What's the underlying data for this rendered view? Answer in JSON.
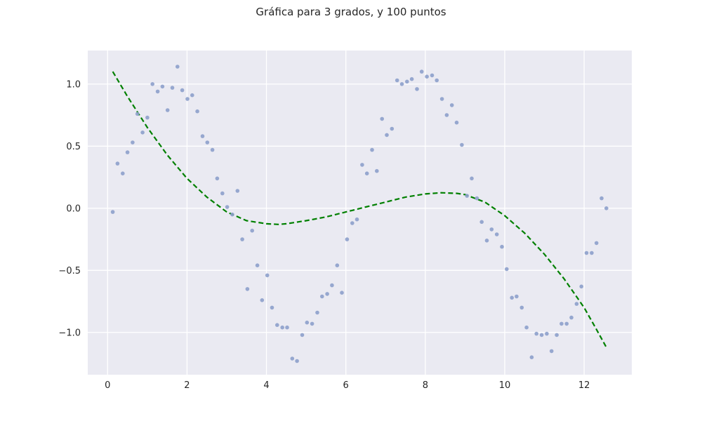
{
  "chart_data": {
    "type": "scatter",
    "title": "Gráfica para 3 grados, y 100 puntos",
    "xlabel": "",
    "ylabel": "",
    "xlim": [
      -0.5,
      13.2
    ],
    "ylim": [
      -1.34,
      1.27
    ],
    "grid": true,
    "legend": "none",
    "xticks": [
      0,
      2,
      4,
      6,
      8,
      10,
      12
    ],
    "xtick_labels": [
      "0",
      "2",
      "4",
      "6",
      "8",
      "10",
      "12"
    ],
    "yticks": [
      -1.0,
      -0.5,
      0.0,
      0.5,
      1.0
    ],
    "ytick_labels": [
      "−1.0",
      "−0.5",
      "0.0",
      "0.5",
      "1.0"
    ],
    "series": [
      {
        "kind": "scatter",
        "color": "#8da0cb",
        "x": [
          0.13,
          0.25,
          0.38,
          0.5,
          0.63,
          0.75,
          0.88,
          1.0,
          1.13,
          1.26,
          1.38,
          1.51,
          1.63,
          1.76,
          1.88,
          2.01,
          2.13,
          2.26,
          2.39,
          2.51,
          2.64,
          2.76,
          2.89,
          3.01,
          3.14,
          3.27,
          3.39,
          3.52,
          3.64,
          3.77,
          3.89,
          4.02,
          4.14,
          4.27,
          4.4,
          4.52,
          4.65,
          4.77,
          4.9,
          5.02,
          5.15,
          5.28,
          5.4,
          5.53,
          5.65,
          5.78,
          5.9,
          6.03,
          6.16,
          6.28,
          6.41,
          6.53,
          6.66,
          6.78,
          6.91,
          7.03,
          7.16,
          7.29,
          7.41,
          7.54,
          7.66,
          7.79,
          7.91,
          8.04,
          8.17,
          8.29,
          8.42,
          8.54,
          8.67,
          8.79,
          8.92,
          9.05,
          9.17,
          9.3,
          9.42,
          9.55,
          9.67,
          9.8,
          9.93,
          10.05,
          10.18,
          10.3,
          10.43,
          10.55,
          10.68,
          10.8,
          10.93,
          11.06,
          11.18,
          11.31,
          11.43,
          11.56,
          11.68,
          11.81,
          11.93,
          12.06,
          12.19,
          12.31,
          12.44,
          12.56
        ],
        "y": [
          -0.03,
          0.36,
          0.28,
          0.45,
          0.53,
          0.76,
          0.61,
          0.73,
          1.0,
          0.94,
          0.98,
          0.79,
          0.97,
          1.14,
          0.95,
          0.88,
          0.91,
          0.78,
          0.58,
          0.53,
          0.47,
          0.24,
          0.12,
          0.01,
          -0.05,
          0.14,
          -0.25,
          -0.65,
          -0.18,
          -0.46,
          -0.74,
          -0.54,
          -0.8,
          -0.94,
          -0.96,
          -0.96,
          -1.21,
          -1.23,
          -1.02,
          -0.92,
          -0.93,
          -0.84,
          -0.71,
          -0.69,
          -0.62,
          -0.46,
          -0.68,
          -0.25,
          -0.12,
          -0.09,
          0.35,
          0.28,
          0.47,
          0.3,
          0.72,
          0.59,
          0.64,
          1.03,
          1.0,
          1.02,
          1.04,
          0.96,
          1.1,
          1.06,
          1.07,
          1.03,
          0.88,
          0.75,
          0.83,
          0.69,
          0.51,
          0.1,
          0.24,
          0.08,
          -0.11,
          -0.26,
          -0.17,
          -0.21,
          -0.31,
          -0.49,
          -0.72,
          -0.71,
          -0.8,
          -0.96,
          -1.2,
          -1.01,
          -1.02,
          -1.01,
          -1.15,
          -1.02,
          -0.93,
          -0.93,
          -0.88,
          -0.77,
          -0.63,
          -0.36,
          -0.36,
          -0.28,
          0.08,
          0.0
        ]
      },
      {
        "kind": "line",
        "style": "dashed",
        "color": "#008000",
        "x": [
          0.13,
          0.5,
          1.0,
          1.5,
          2.0,
          2.5,
          3.0,
          3.5,
          4.0,
          4.3,
          4.5,
          5.0,
          5.5,
          6.0,
          6.5,
          7.0,
          7.5,
          8.0,
          8.4,
          8.8,
          9.0,
          9.5,
          10.0,
          10.5,
          11.0,
          11.5,
          12.0,
          12.3,
          12.56
        ],
        "y": [
          1.1,
          0.9,
          0.65,
          0.43,
          0.24,
          0.09,
          -0.03,
          -0.1,
          -0.125,
          -0.13,
          -0.125,
          -0.1,
          -0.07,
          -0.03,
          0.01,
          0.05,
          0.09,
          0.115,
          0.125,
          0.12,
          0.11,
          0.05,
          -0.06,
          -0.2,
          -0.37,
          -0.57,
          -0.8,
          -0.97,
          -1.12
        ]
      }
    ]
  }
}
